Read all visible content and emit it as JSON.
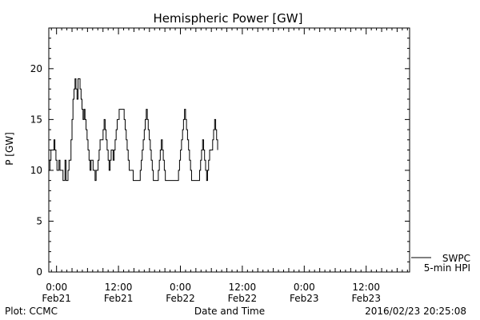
{
  "chart_data": {
    "type": "line",
    "title": "Hemispheric Power [GW]",
    "xlabel": "Date and Time",
    "ylabel": "P [GW]",
    "ylim": [
      0,
      24
    ],
    "yticks": [
      0,
      5,
      10,
      15,
      20
    ],
    "xlim": [
      "2016-02-20T22:30",
      "2016-02-23T20:25"
    ],
    "xticks": [
      {
        "t": "2016-02-21T00:00",
        "time": "0:00",
        "date": "Feb21"
      },
      {
        "t": "2016-02-21T12:00",
        "time": "12:00",
        "date": "Feb21"
      },
      {
        "t": "2016-02-22T00:00",
        "time": "0:00",
        "date": "Feb22"
      },
      {
        "t": "2016-02-22T12:00",
        "time": "12:00",
        "date": "Feb22"
      },
      {
        "t": "2016-02-23T00:00",
        "time": "0:00",
        "date": "Feb23"
      },
      {
        "t": "2016-02-23T12:00",
        "time": "12:00",
        "date": "Feb23"
      }
    ],
    "grid": false,
    "legend_position": "bottom-right",
    "series": [
      {
        "name": "SWPC",
        "line2": "5-min HPI",
        "color": "#000000",
        "points": [
          [
            "2016-02-20T22:30",
            10
          ],
          [
            "2016-02-20T22:43",
            11
          ],
          [
            "2016-02-20T22:55",
            12
          ],
          [
            "2016-02-20T23:18",
            12
          ],
          [
            "2016-02-20T23:30",
            13
          ],
          [
            "2016-02-20T23:41",
            12
          ],
          [
            "2016-02-20T23:53",
            11
          ],
          [
            "2016-02-21T00:05",
            10
          ],
          [
            "2016-02-21T00:28",
            11
          ],
          [
            "2016-02-21T00:40",
            10
          ],
          [
            "2016-02-21T01:15",
            9
          ],
          [
            "2016-02-21T01:38",
            11
          ],
          [
            "2016-02-21T01:50",
            9
          ],
          [
            "2016-02-21T02:13",
            10
          ],
          [
            "2016-02-21T02:25",
            11
          ],
          [
            "2016-02-21T02:48",
            13
          ],
          [
            "2016-02-21T03:00",
            15
          ],
          [
            "2016-02-21T03:11",
            17
          ],
          [
            "2016-02-21T03:23",
            18
          ],
          [
            "2016-02-21T03:35",
            19
          ],
          [
            "2016-02-21T03:46",
            18
          ],
          [
            "2016-02-21T03:58",
            17
          ],
          [
            "2016-02-21T04:10",
            19
          ],
          [
            "2016-02-21T04:21",
            19
          ],
          [
            "2016-02-21T04:33",
            18
          ],
          [
            "2016-02-21T04:45",
            17
          ],
          [
            "2016-02-21T04:56",
            16
          ],
          [
            "2016-02-21T05:08",
            15
          ],
          [
            "2016-02-21T05:20",
            16
          ],
          [
            "2016-02-21T05:31",
            15
          ],
          [
            "2016-02-21T05:43",
            14
          ],
          [
            "2016-02-21T05:55",
            13
          ],
          [
            "2016-02-21T06:06",
            12
          ],
          [
            "2016-02-21T06:18",
            11
          ],
          [
            "2016-02-21T06:30",
            10
          ],
          [
            "2016-02-21T06:41",
            11
          ],
          [
            "2016-02-21T07:05",
            10
          ],
          [
            "2016-02-21T07:28",
            9
          ],
          [
            "2016-02-21T07:40",
            10
          ],
          [
            "2016-02-21T08:03",
            11
          ],
          [
            "2016-02-21T08:15",
            12
          ],
          [
            "2016-02-21T08:26",
            13
          ],
          [
            "2016-02-21T08:50",
            13
          ],
          [
            "2016-02-21T09:01",
            14
          ],
          [
            "2016-02-21T09:13",
            15
          ],
          [
            "2016-02-21T09:25",
            14
          ],
          [
            "2016-02-21T09:36",
            13
          ],
          [
            "2016-02-21T09:48",
            12
          ],
          [
            "2016-02-21T10:00",
            11
          ],
          [
            "2016-02-21T10:11",
            10
          ],
          [
            "2016-02-21T10:23",
            11
          ],
          [
            "2016-02-21T10:35",
            12
          ],
          [
            "2016-02-21T10:58",
            11
          ],
          [
            "2016-02-21T11:10",
            12
          ],
          [
            "2016-02-21T11:21",
            13
          ],
          [
            "2016-02-21T11:33",
            14
          ],
          [
            "2016-02-21T11:45",
            15
          ],
          [
            "2016-02-21T12:08",
            16
          ],
          [
            "2016-02-21T12:55",
            16
          ],
          [
            "2016-02-21T13:06",
            15
          ],
          [
            "2016-02-21T13:18",
            14
          ],
          [
            "2016-02-21T13:30",
            13
          ],
          [
            "2016-02-21T13:41",
            12
          ],
          [
            "2016-02-21T13:53",
            11
          ],
          [
            "2016-02-21T14:05",
            10
          ],
          [
            "2016-02-21T14:51",
            9
          ],
          [
            "2016-02-21T16:01",
            9
          ],
          [
            "2016-02-21T16:13",
            10
          ],
          [
            "2016-02-21T16:25",
            11
          ],
          [
            "2016-02-21T16:36",
            12
          ],
          [
            "2016-02-21T16:48",
            13
          ],
          [
            "2016-02-21T17:00",
            14
          ],
          [
            "2016-02-21T17:11",
            15
          ],
          [
            "2016-02-21T17:23",
            16
          ],
          [
            "2016-02-21T17:35",
            15
          ],
          [
            "2016-02-21T17:46",
            14
          ],
          [
            "2016-02-21T17:58",
            13
          ],
          [
            "2016-02-21T18:10",
            12
          ],
          [
            "2016-02-21T18:21",
            11
          ],
          [
            "2016-02-21T18:33",
            10
          ],
          [
            "2016-02-21T18:45",
            9
          ],
          [
            "2016-02-21T19:31",
            9
          ],
          [
            "2016-02-21T19:43",
            10
          ],
          [
            "2016-02-21T19:55",
            11
          ],
          [
            "2016-02-21T20:06",
            12
          ],
          [
            "2016-02-21T20:18",
            13
          ],
          [
            "2016-02-21T20:30",
            12
          ],
          [
            "2016-02-21T20:41",
            11
          ],
          [
            "2016-02-21T20:53",
            10
          ],
          [
            "2016-02-21T21:05",
            9
          ],
          [
            "2016-02-21T23:26",
            9
          ],
          [
            "2016-02-21T23:38",
            10
          ],
          [
            "2016-02-21T23:50",
            11
          ],
          [
            "2016-02-22T00:01",
            12
          ],
          [
            "2016-02-22T00:13",
            13
          ],
          [
            "2016-02-22T00:25",
            14
          ],
          [
            "2016-02-22T00:36",
            15
          ],
          [
            "2016-02-22T00:48",
            16
          ],
          [
            "2016-02-22T01:00",
            15
          ],
          [
            "2016-02-22T01:11",
            14
          ],
          [
            "2016-02-22T01:23",
            13
          ],
          [
            "2016-02-22T01:35",
            12
          ],
          [
            "2016-02-22T01:46",
            11
          ],
          [
            "2016-02-22T01:58",
            10
          ],
          [
            "2016-02-22T02:10",
            9
          ],
          [
            "2016-02-22T03:31",
            9
          ],
          [
            "2016-02-22T03:43",
            10
          ],
          [
            "2016-02-22T03:55",
            11
          ],
          [
            "2016-02-22T04:06",
            12
          ],
          [
            "2016-02-22T04:18",
            13
          ],
          [
            "2016-02-22T04:30",
            12
          ],
          [
            "2016-02-22T04:41",
            11
          ],
          [
            "2016-02-22T04:53",
            10
          ],
          [
            "2016-02-22T05:05",
            9
          ],
          [
            "2016-02-22T05:16",
            10
          ],
          [
            "2016-02-22T05:28",
            11
          ],
          [
            "2016-02-22T05:40",
            12
          ],
          [
            "2016-02-22T06:03",
            12
          ],
          [
            "2016-02-22T06:15",
            13
          ],
          [
            "2016-02-22T06:26",
            14
          ],
          [
            "2016-02-22T06:38",
            15
          ],
          [
            "2016-02-22T06:50",
            14
          ],
          [
            "2016-02-22T07:01",
            13
          ],
          [
            "2016-02-22T07:13",
            12
          ]
        ]
      }
    ]
  },
  "footer": {
    "plot_credit": "Plot: CCMC",
    "timestamp": "2016/02/23 20:25:08"
  }
}
